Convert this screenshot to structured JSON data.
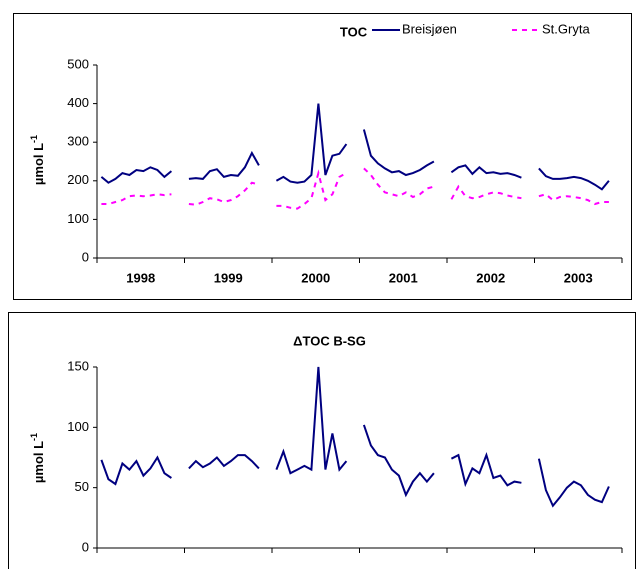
{
  "chart_data": [
    {
      "type": "line",
      "title": "TOC",
      "y_label": "µmol L",
      "y_label_sup": "-1",
      "x": [
        1998.05,
        1998.13,
        1998.21,
        1998.29,
        1998.37,
        1998.45,
        1998.53,
        1998.61,
        1998.69,
        1998.77,
        1998.85,
        null,
        1999.05,
        1999.13,
        1999.21,
        1999.29,
        1999.37,
        1999.45,
        1999.53,
        1999.61,
        1999.69,
        1999.77,
        1999.85,
        null,
        2000.05,
        2000.13,
        2000.21,
        2000.29,
        2000.37,
        2000.45,
        2000.53,
        2000.61,
        2000.69,
        2000.77,
        2000.85,
        null,
        2001.05,
        2001.13,
        2001.21,
        2001.29,
        2001.37,
        2001.45,
        2001.53,
        2001.61,
        2001.69,
        2001.77,
        2001.85,
        null,
        2002.05,
        2002.13,
        2002.21,
        2002.29,
        2002.37,
        2002.45,
        2002.53,
        2002.61,
        2002.69,
        2002.77,
        2002.85,
        null,
        2003.05,
        2003.13,
        2003.21,
        2003.29,
        2003.37,
        2003.45,
        2003.53,
        2003.61,
        2003.69,
        2003.77,
        2003.85
      ],
      "xlim": [
        1998,
        2004
      ],
      "xticks": [
        {
          "value": 1998.5,
          "label": "1998"
        },
        {
          "value": 1999.5,
          "label": "1999"
        },
        {
          "value": 2000.5,
          "label": "2000"
        },
        {
          "value": 2001.5,
          "label": "2001"
        },
        {
          "value": 2002.5,
          "label": "2002"
        },
        {
          "value": 2003.5,
          "label": "2003"
        }
      ],
      "ylim": [
        0,
        500
      ],
      "yticks": [
        0,
        100,
        200,
        300,
        400,
        500
      ],
      "series": [
        {
          "name": "Breisjøen",
          "color": "#000080",
          "dash": false,
          "values": [
            210,
            195,
            205,
            220,
            215,
            228,
            225,
            235,
            228,
            210,
            225,
            null,
            205,
            207,
            205,
            225,
            230,
            210,
            215,
            213,
            235,
            272,
            240,
            null,
            200,
            210,
            198,
            195,
            198,
            215,
            400,
            215,
            265,
            270,
            295,
            null,
            333,
            265,
            245,
            232,
            222,
            225,
            215,
            220,
            228,
            240,
            250,
            null,
            222,
            235,
            240,
            218,
            235,
            220,
            222,
            218,
            220,
            215,
            208,
            null,
            232,
            212,
            205,
            205,
            207,
            210,
            207,
            200,
            190,
            178,
            200
          ]
        },
        {
          "name": "St.Gryta",
          "color": "#ff00ff",
          "dash": true,
          "values": [
            140,
            140,
            145,
            150,
            160,
            162,
            160,
            162,
            165,
            163,
            165,
            null,
            140,
            138,
            145,
            155,
            152,
            145,
            150,
            160,
            175,
            195,
            190,
            null,
            135,
            135,
            130,
            128,
            140,
            155,
            220,
            150,
            165,
            210,
            220,
            null,
            232,
            215,
            190,
            170,
            165,
            160,
            170,
            158,
            165,
            180,
            185,
            null,
            152,
            185,
            160,
            155,
            158,
            165,
            170,
            168,
            162,
            158,
            155,
            null,
            160,
            165,
            150,
            158,
            160,
            158,
            155,
            150,
            140,
            145,
            145
          ]
        }
      ]
    },
    {
      "type": "line",
      "title": "ΔTOC B-SG",
      "y_label": "µmol L",
      "y_label_sup": "-1",
      "x": [
        1998.05,
        1998.13,
        1998.21,
        1998.29,
        1998.37,
        1998.45,
        1998.53,
        1998.61,
        1998.69,
        1998.77,
        1998.85,
        null,
        1999.05,
        1999.13,
        1999.21,
        1999.29,
        1999.37,
        1999.45,
        1999.53,
        1999.61,
        1999.69,
        1999.77,
        1999.85,
        null,
        2000.05,
        2000.13,
        2000.21,
        2000.29,
        2000.37,
        2000.45,
        2000.53,
        2000.61,
        2000.69,
        2000.77,
        2000.85,
        null,
        2001.05,
        2001.13,
        2001.21,
        2001.29,
        2001.37,
        2001.45,
        2001.53,
        2001.61,
        2001.69,
        2001.77,
        2001.85,
        null,
        2002.05,
        2002.13,
        2002.21,
        2002.29,
        2002.37,
        2002.45,
        2002.53,
        2002.61,
        2002.69,
        2002.77,
        2002.85,
        null,
        2003.05,
        2003.13,
        2003.21,
        2003.29,
        2003.37,
        2003.45,
        2003.53,
        2003.61,
        2003.69,
        2003.77,
        2003.85
      ],
      "xlim": [
        1998,
        2004
      ],
      "ylim": [
        0,
        150
      ],
      "yticks": [
        0,
        50,
        100,
        150
      ],
      "series": [
        {
          "color": "#000080",
          "dash": false,
          "values": [
            73,
            57,
            53,
            70,
            65,
            72,
            60,
            66,
            75,
            62,
            58,
            null,
            66,
            72,
            67,
            70,
            75,
            68,
            72,
            77,
            77,
            72,
            66,
            null,
            65,
            80,
            62,
            65,
            68,
            65,
            150,
            65,
            95,
            65,
            72,
            null,
            102,
            85,
            77,
            75,
            65,
            60,
            44,
            55,
            62,
            55,
            62,
            null,
            74,
            77,
            53,
            66,
            62,
            77,
            58,
            60,
            52,
            55,
            54,
            null,
            74,
            48,
            35,
            42,
            50,
            55,
            52,
            44,
            40,
            38,
            51
          ]
        }
      ]
    }
  ]
}
